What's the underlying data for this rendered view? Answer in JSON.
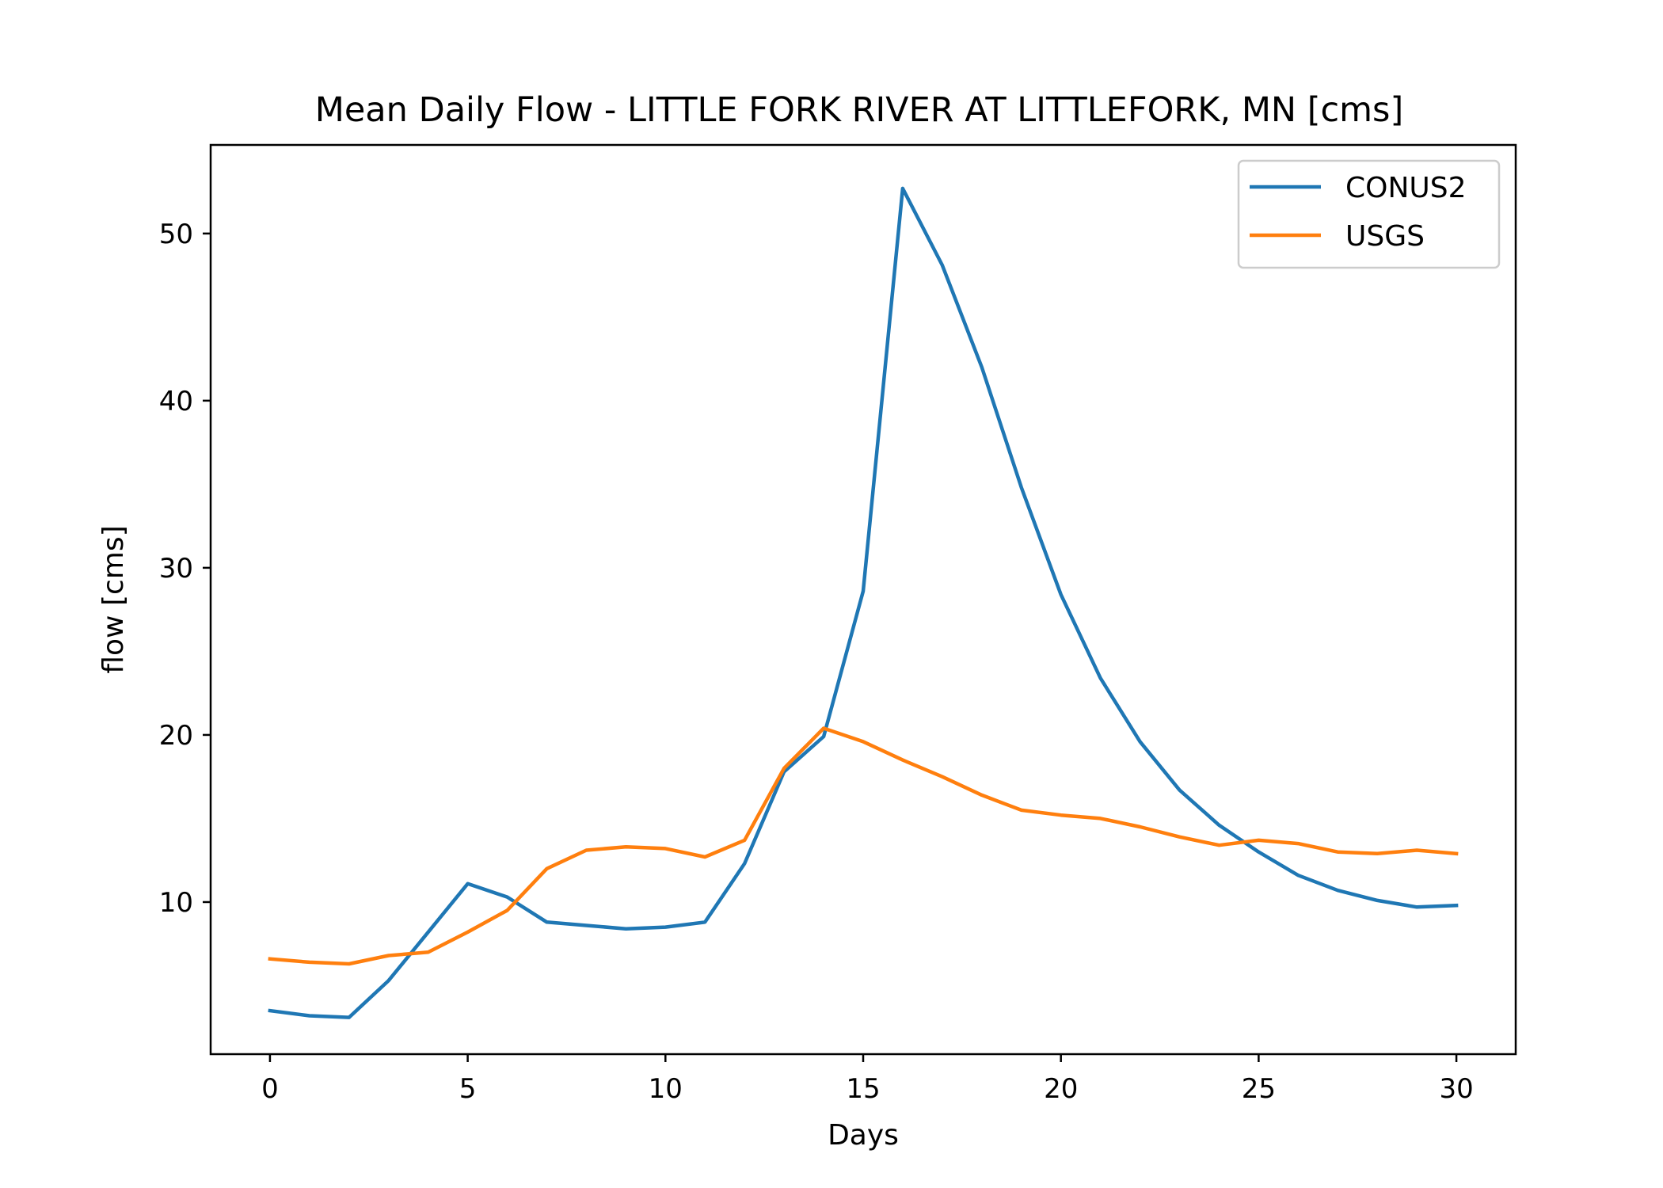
{
  "chart_data": {
    "type": "line",
    "title": "Mean Daily Flow - LITTLE FORK RIVER AT LITTLEFORK, MN [cms]",
    "xlabel": "Days",
    "ylabel": "flow [cms]",
    "xlim": [
      -1.5,
      31.5
    ],
    "ylim": [
      0.9,
      55.3
    ],
    "xticks": [
      0,
      5,
      10,
      15,
      20,
      25,
      30
    ],
    "yticks": [
      10,
      20,
      30,
      40,
      50
    ],
    "grid": false,
    "legend_position": "top-right",
    "x": [
      0,
      1,
      2,
      3,
      4,
      5,
      6,
      7,
      8,
      9,
      10,
      11,
      12,
      13,
      14,
      15,
      16,
      17,
      18,
      19,
      20,
      21,
      22,
      23,
      24,
      25,
      26,
      27,
      28,
      29,
      30
    ],
    "series": [
      {
        "name": "CONUS2",
        "color": "#1f77b4",
        "values": [
          3.5,
          3.2,
          3.1,
          5.3,
          8.2,
          11.1,
          10.3,
          8.8,
          8.6,
          8.4,
          8.5,
          8.8,
          12.3,
          17.8,
          19.9,
          28.6,
          52.7,
          48.1,
          42.0,
          34.8,
          28.4,
          23.4,
          19.6,
          16.7,
          14.6,
          13.0,
          11.6,
          10.7,
          10.1,
          9.7,
          9.8
        ]
      },
      {
        "name": "USGS",
        "color": "#ff7f0e",
        "values": [
          6.6,
          6.4,
          6.3,
          6.8,
          7.0,
          8.2,
          9.5,
          12.0,
          13.1,
          13.3,
          13.2,
          12.7,
          13.7,
          18.0,
          20.4,
          19.6,
          18.5,
          17.5,
          16.4,
          15.5,
          15.2,
          15.0,
          14.5,
          13.9,
          13.4,
          13.7,
          13.5,
          13.0,
          12.9,
          13.1,
          12.9
        ]
      }
    ]
  }
}
